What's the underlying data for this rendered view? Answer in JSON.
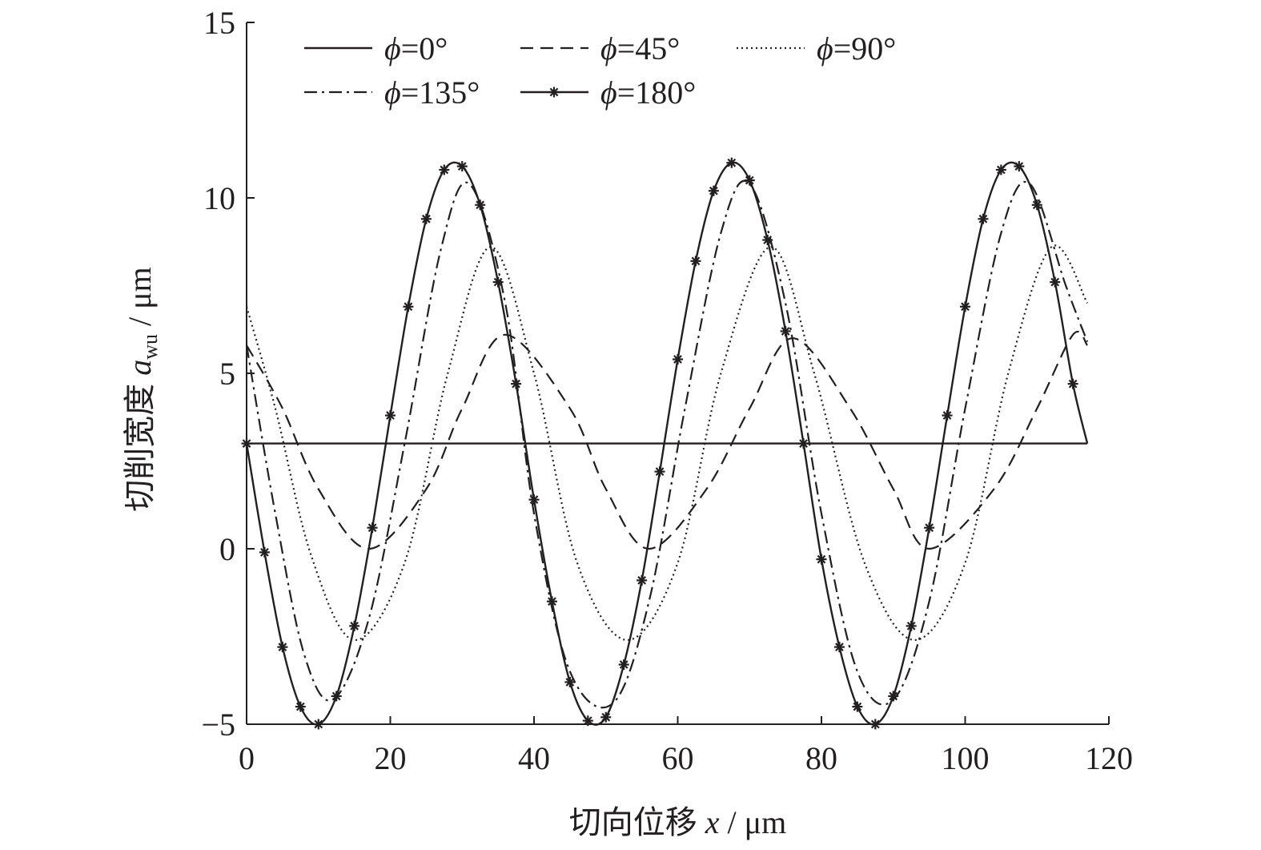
{
  "chart_data": {
    "type": "line",
    "title": "",
    "xlabel": "切向位移 x / μm",
    "ylabel": "切削宽度 awu / μm",
    "xlabel_parts": {
      "prefix": "切向位移 ",
      "var": "x",
      "suffix": " / μm"
    },
    "ylabel_parts": {
      "prefix": "切削宽度 ",
      "var": "a",
      "sub": "wu",
      "suffix": " / μm"
    },
    "xlim": [
      0,
      120
    ],
    "ylim": [
      -5,
      15
    ],
    "x_ticks": [
      0,
      20,
      40,
      60,
      80,
      100,
      120
    ],
    "y_ticks": [
      -5,
      0,
      5,
      10,
      15
    ],
    "x_tick_labels": [
      "0",
      "20",
      "40",
      "60",
      "80",
      "100",
      "120"
    ],
    "y_tick_labels": [
      "−5",
      "0",
      "5",
      "10",
      "15"
    ],
    "grid": false,
    "legend_position": "top",
    "x_range": [
      0,
      117
    ],
    "series": [
      {
        "name": "ϕ=0°",
        "phi_label": "0°",
        "style": "solid",
        "x": [
          0,
          117
        ],
        "y": [
          3.0,
          3.0
        ]
      },
      {
        "name": "ϕ=45°",
        "phi_label": "45°",
        "style": "dashed",
        "x": [
          0,
          5,
          10,
          17,
          25,
          30,
          36,
          45,
          50,
          56,
          64,
          70,
          76,
          84,
          90,
          95,
          104,
          110,
          115,
          117
        ],
        "y": [
          5.8,
          4.0,
          1.7,
          0.0,
          1.7,
          4.0,
          6.1,
          4.0,
          1.7,
          0.0,
          1.7,
          4.0,
          6.0,
          4.0,
          1.7,
          0.0,
          1.7,
          4.0,
          6.1,
          5.8
        ]
      },
      {
        "name": "ϕ=90°",
        "phi_label": "90°",
        "style": "dotted",
        "x": [
          0,
          4,
          9,
          15,
          22,
          28,
          34,
          40,
          46,
          53,
          60,
          66,
          73,
          79,
          86,
          93,
          100,
          106,
          112,
          117
        ],
        "y": [
          6.9,
          4.0,
          -0.2,
          -2.6,
          -0.4,
          5.0,
          8.6,
          5.0,
          -0.4,
          -2.6,
          -0.4,
          5.0,
          8.6,
          5.0,
          -0.4,
          -2.6,
          -0.4,
          5.0,
          8.6,
          7.0
        ]
      },
      {
        "name": "ϕ=135°",
        "phi_label": "135°",
        "style": "dashdot",
        "x": [
          0,
          4,
          8,
          12,
          17,
          22,
          27,
          31,
          36,
          40,
          45,
          51,
          56,
          61,
          66,
          70,
          75,
          80,
          85,
          90,
          95,
          100,
          105,
          109,
          114,
          117
        ],
        "y": [
          5.8,
          1.0,
          -3.0,
          -4.3,
          -2.0,
          3.0,
          8.5,
          10.4,
          7.0,
          1.0,
          -3.5,
          -4.4,
          -1.5,
          4.0,
          9.0,
          10.4,
          7.0,
          1.0,
          -3.5,
          -4.3,
          -1.5,
          4.0,
          9.0,
          10.4,
          7.5,
          5.9
        ]
      },
      {
        "name": "ϕ=180°",
        "phi_label": "180°",
        "style": "solid-star",
        "x": [
          0,
          2.5,
          5,
          7.5,
          10,
          12.5,
          15,
          17.5,
          20,
          22.5,
          25,
          27.5,
          30,
          32.5,
          35,
          37.5,
          40,
          42.5,
          45,
          47.5,
          50,
          52.5,
          55,
          57.5,
          60,
          62.5,
          65,
          67.5,
          70,
          72.5,
          75,
          77.5,
          80,
          82.5,
          85,
          87.5,
          90,
          92.5,
          95,
          97.5,
          100,
          102.5,
          105,
          107.5,
          110,
          112.5,
          115,
          117
        ],
        "y": [
          3.0,
          -0.1,
          -2.8,
          -4.5,
          -5.0,
          -4.2,
          -2.2,
          0.6,
          3.8,
          6.9,
          9.4,
          10.8,
          10.9,
          9.8,
          7.6,
          4.7,
          1.4,
          -1.5,
          -3.8,
          -4.9,
          -4.8,
          -3.3,
          -0.9,
          2.2,
          5.4,
          8.2,
          10.2,
          11.0,
          10.5,
          8.8,
          6.2,
          3.0,
          -0.3,
          -2.8,
          -4.5,
          -5.0,
          -4.2,
          -2.2,
          0.6,
          3.8,
          6.9,
          9.4,
          10.8,
          10.9,
          9.8,
          7.6,
          4.7,
          3.0
        ]
      }
    ]
  }
}
